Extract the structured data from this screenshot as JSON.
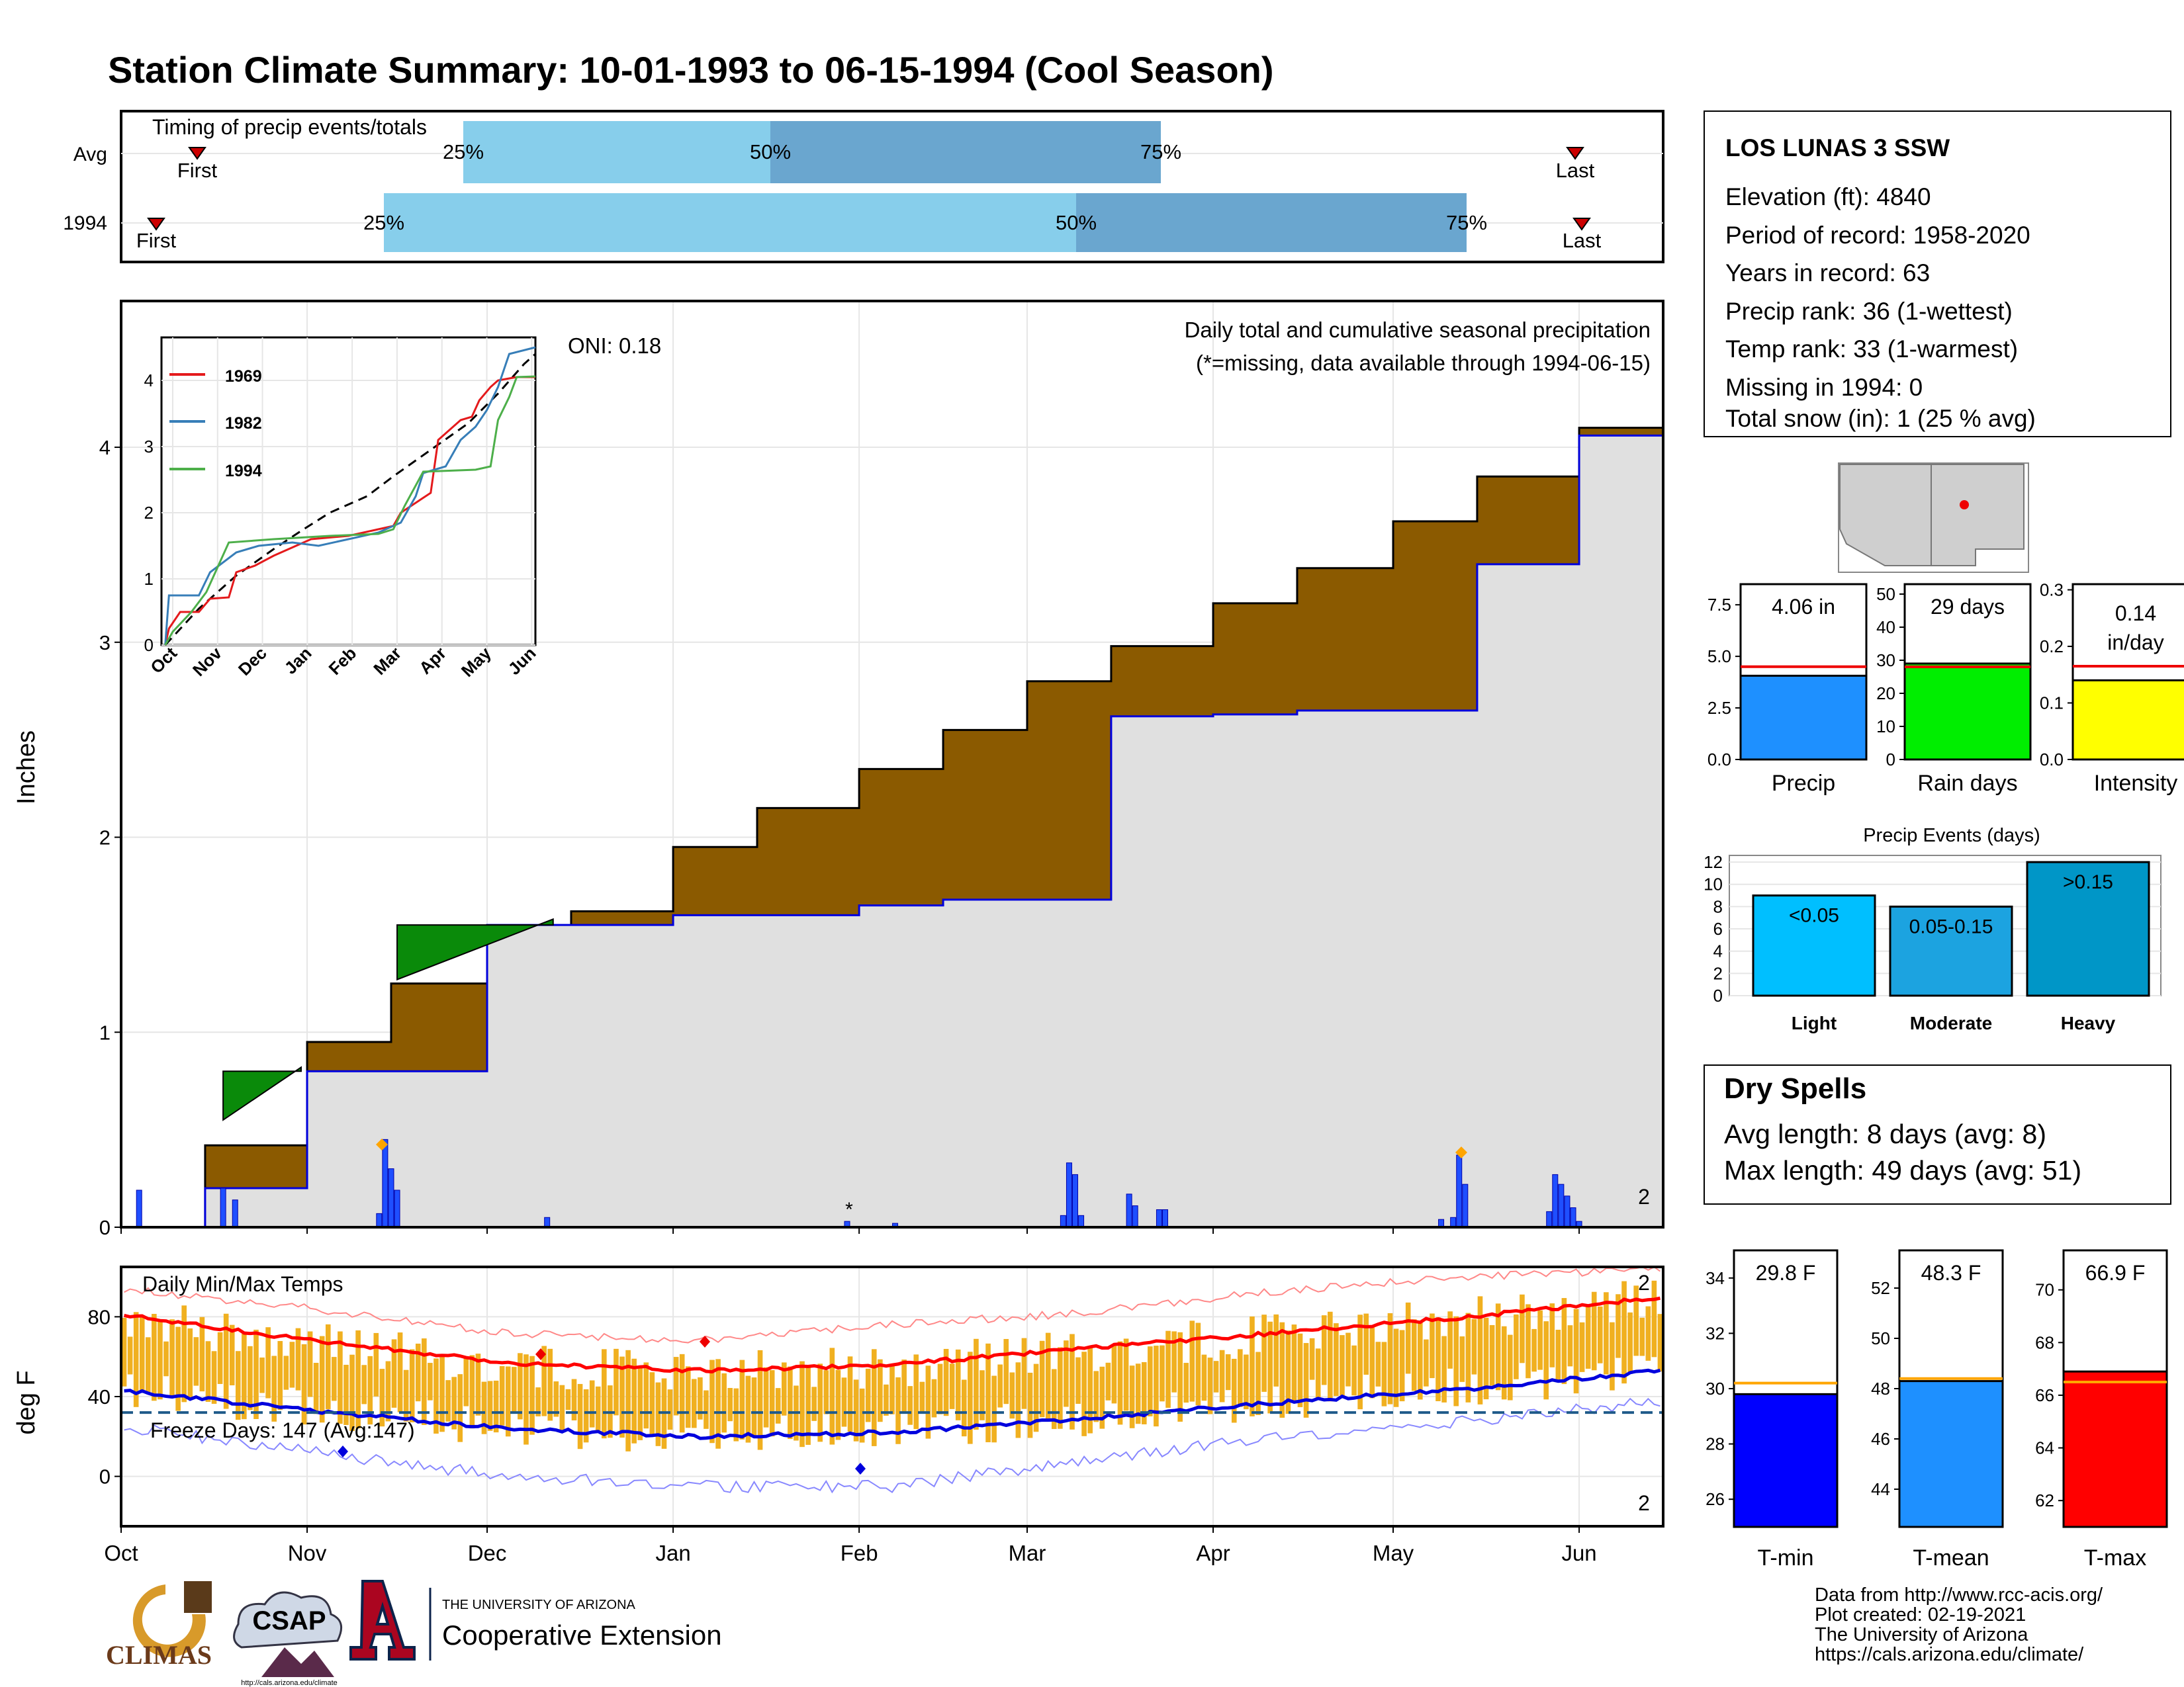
{
  "title": "Station Climate Summary: 10-01-1993 to 06-15-1994 (Cool Season)",
  "colors": {
    "title": "#2a3f86",
    "cum_precip": "#8b5a00",
    "cum_avg_fill": "#e0e0e0",
    "daily_bar": "#1f4fff",
    "tmax": "#ff0000",
    "tmin": "#0000dd",
    "temp_bar": "#f0b020",
    "dry_spells": "#a52a2a",
    "pct_light": "#87ceeb",
    "pct_dark": "#6aa6cf"
  },
  "timing": {
    "title": "Timing of precip events/totals",
    "rows": [
      {
        "label": "Avg",
        "first": "First",
        "last": "Last",
        "p25": "25%",
        "p50": "50%",
        "p75": "75%"
      },
      {
        "label": "1994",
        "first": "First",
        "last": "Last",
        "p25": "25%",
        "p50": "50%",
        "p75": "75%"
      }
    ]
  },
  "precip_panel": {
    "ylabel": "Inches",
    "oni": "ONI: 0.18",
    "subtitle": "Daily total and cumulative seasonal precipitation",
    "missing_note": "(*=missing, data available through 1994-06-15)",
    "count_label": "2",
    "yticks": [
      "0",
      "1",
      "2",
      "3",
      "4"
    ]
  },
  "inset": {
    "legend": [
      "1969",
      "1982",
      "1994"
    ],
    "yticks": [
      "0",
      "1",
      "2",
      "3",
      "4"
    ],
    "xticks": [
      "Oct",
      "Nov",
      "Dec",
      "Jan",
      "Feb",
      "Mar",
      "Apr",
      "May",
      "Jun"
    ]
  },
  "temp_panel": {
    "ylabel": "deg F",
    "title": "Daily Min/Max Temps",
    "freeze": "Freeze Days: 147 (Avg:147)",
    "yticks": [
      "0",
      "40",
      "80"
    ],
    "count_top": "2",
    "count_bottom": "2"
  },
  "months": [
    "Oct",
    "Nov",
    "Dec",
    "Jan",
    "Feb",
    "Mar",
    "Apr",
    "May",
    "Jun"
  ],
  "station": {
    "name": "LOS LUNAS 3 SSW",
    "lines": [
      "Elevation (ft): 4840",
      "Period of record: 1958-2020",
      "Years in record: 63",
      "Precip rank: 36 (1-wettest)",
      "Temp rank: 33 (1-warmest)",
      "Missing in 1994: 0",
      "Total snow (in): 1 (25 % avg)"
    ]
  },
  "mini_bars": [
    {
      "label": "Precip",
      "value_label": "4.06 in",
      "value": 4.06,
      "avg": 4.5,
      "ymax": 8.5,
      "yticks": [
        "0.0",
        "2.5",
        "5.0",
        "7.5"
      ],
      "color": "#1e90ff"
    },
    {
      "label": "Rain days",
      "value_label": "29 days",
      "value": 29,
      "avg": 28,
      "ymax": 53,
      "yticks": [
        "0",
        "10",
        "20",
        "30",
        "40",
        "50"
      ],
      "color": "#00ee00"
    },
    {
      "label": "Intensity",
      "value_label": "0.14 in/day",
      "value": 0.14,
      "avg": 0.165,
      "ymax": 0.31,
      "yticks": [
        "0.0",
        "0.1",
        "0.2",
        "0.3"
      ],
      "color": "#ffff00"
    }
  ],
  "events": {
    "title": "Precip Events (days)",
    "yticks": [
      "0",
      "2",
      "4",
      "6",
      "8",
      "10",
      "12"
    ],
    "bars": [
      {
        "category": "Light",
        "label": "<0.05",
        "value": 9,
        "color": "#00bfff"
      },
      {
        "category": "Moderate",
        "label": "0.05-0.15",
        "value": 8,
        "color": "#1ca3e0"
      },
      {
        "category": "Heavy",
        "label": ">0.15",
        "value": 12,
        "color": "#0096c7"
      }
    ]
  },
  "dry_spells": {
    "title": "Dry Spells",
    "avg": "Avg length: 8 days (avg: 8)",
    "max": "Max length: 49 days (avg: 51)"
  },
  "temp_bars": [
    {
      "label": "T-min",
      "value_label": "29.8 F",
      "value": 29.8,
      "avg": 30.2,
      "ymin": 25,
      "ymax": 35,
      "yticks": [
        "26",
        "28",
        "30",
        "32",
        "34"
      ],
      "color": "#0000ff"
    },
    {
      "label": "T-mean",
      "value_label": "48.3 F",
      "value": 48.3,
      "avg": 48.4,
      "ymin": 42.5,
      "ymax": 53.5,
      "yticks": [
        "44",
        "46",
        "48",
        "50",
        "52"
      ],
      "color": "#1e90ff"
    },
    {
      "label": "T-max",
      "value_label": "66.9 F",
      "value": 66.9,
      "avg": 66.5,
      "ymin": 61,
      "ymax": 71.5,
      "yticks": [
        "62",
        "64",
        "66",
        "68",
        "70"
      ],
      "color": "#ff0000"
    }
  ],
  "footer": {
    "lines": [
      "Data from http://www.rcc-acis.org/",
      "Plot created: 02-19-2021",
      "The University of Arizona",
      "https://cals.arizona.edu/climate/"
    ]
  },
  "logos": {
    "climas": "CLIMAS",
    "csap": "CSAP",
    "csap_url": "http://cals.arizona.edu/climate",
    "ua_small": "THE UNIVERSITY OF ARIZONA",
    "ua_big": "Cooperative Extension"
  },
  "chart_data": [
    {
      "type": "area",
      "title": "Daily total and cumulative seasonal precipitation",
      "ylabel": "Inches",
      "ylim": [
        0,
        4.75
      ],
      "x": [
        "1993-10-01",
        "1993-10-15",
        "1993-11-01",
        "1993-11-15",
        "1993-12-01",
        "1993-12-15",
        "1994-01-01",
        "1994-01-15",
        "1994-02-01",
        "1994-02-15",
        "1994-03-01",
        "1994-03-15",
        "1994-04-01",
        "1994-04-15",
        "1994-05-01",
        "1994-05-15",
        "1994-06-01",
        "1994-06-15"
      ],
      "series": [
        {
          "name": "Avg cumulative",
          "values": [
            0.0,
            0.42,
            0.95,
            1.25,
            1.5,
            1.62,
            1.95,
            2.15,
            2.35,
            2.55,
            2.8,
            2.98,
            3.2,
            3.38,
            3.62,
            3.85,
            4.1,
            4.35
          ]
        },
        {
          "name": "1994 cumulative",
          "values": [
            0.0,
            0.2,
            0.8,
            0.8,
            1.55,
            1.55,
            1.6,
            1.6,
            1.65,
            1.68,
            1.68,
            2.62,
            2.63,
            2.65,
            2.65,
            3.4,
            4.06,
            4.06
          ]
        }
      ],
      "daily_events": [
        {
          "date": "1993-10-04",
          "value": 0.19
        },
        {
          "date": "1993-10-18",
          "value": 0.2
        },
        {
          "date": "1993-10-20",
          "value": 0.14
        },
        {
          "date": "1993-11-13",
          "value": 0.07
        },
        {
          "date": "1993-11-14",
          "value": 0.45
        },
        {
          "date": "1993-11-15",
          "value": 0.3
        },
        {
          "date": "1993-11-16",
          "value": 0.19
        },
        {
          "date": "1993-12-11",
          "value": 0.05
        },
        {
          "date": "1994-01-30",
          "value": 0.03
        },
        {
          "date": "1994-02-07",
          "value": 0.02
        },
        {
          "date": "1994-03-07",
          "value": 0.06
        },
        {
          "date": "1994-03-08",
          "value": 0.33
        },
        {
          "date": "1994-03-09",
          "value": 0.27
        },
        {
          "date": "1994-03-10",
          "value": 0.06
        },
        {
          "date": "1994-03-18",
          "value": 0.17
        },
        {
          "date": "1994-03-19",
          "value": 0.11
        },
        {
          "date": "1994-03-23",
          "value": 0.09
        },
        {
          "date": "1994-03-24",
          "value": 0.09
        },
        {
          "date": "1994-05-09",
          "value": 0.04
        },
        {
          "date": "1994-05-11",
          "value": 0.05
        },
        {
          "date": "1994-05-12",
          "value": 0.37
        },
        {
          "date": "1994-05-13",
          "value": 0.22
        },
        {
          "date": "1994-05-27",
          "value": 0.08
        },
        {
          "date": "1994-05-28",
          "value": 0.27
        },
        {
          "date": "1994-05-29",
          "value": 0.22
        },
        {
          "date": "1994-05-30",
          "value": 0.16
        },
        {
          "date": "1994-05-31",
          "value": 0.1
        },
        {
          "date": "1994-06-01",
          "value": 0.03
        }
      ]
    },
    {
      "type": "line",
      "title": "Daily Min/Max Temps",
      "ylabel": "deg F",
      "ylim": [
        -25,
        105
      ],
      "x": [
        "Oct",
        "Nov",
        "Dec",
        "Jan",
        "Feb",
        "Mar",
        "Apr",
        "May",
        "Jun"
      ],
      "series": [
        {
          "name": "Avg max",
          "values": [
            81,
            68,
            57,
            53,
            56,
            64,
            72,
            80,
            90
          ]
        },
        {
          "name": "Avg min",
          "values": [
            43,
            33,
            24,
            20,
            22,
            29,
            37,
            44,
            53
          ]
        },
        {
          "name": "Record max",
          "values": [
            94,
            84,
            72,
            68,
            76,
            82,
            93,
            100,
            104
          ]
        },
        {
          "name": "Record min",
          "values": [
            25,
            12,
            0,
            -5,
            -5,
            8,
            20,
            28,
            38
          ]
        }
      ],
      "freeze_threshold": 32
    }
  ]
}
